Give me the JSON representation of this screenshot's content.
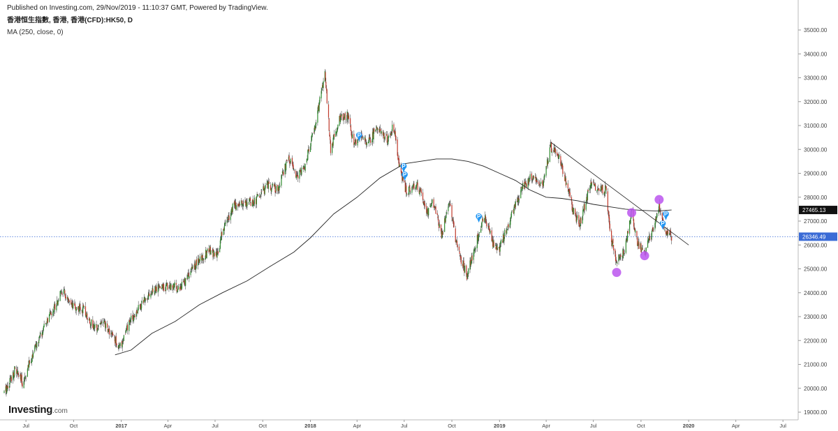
{
  "header": {
    "published": "Published on Investing.com, 29/Nov/2019 - 11:10:37 GMT, Powered by TradingView.",
    "symbol": "香港恒生指數, 香港, 香港(CFD):HK50, D",
    "indicator": "MA (250, close, 0)"
  },
  "logo": {
    "brand": "Investing",
    "domain": ".com"
  },
  "chart_data": {
    "type": "candlestick",
    "title": "",
    "xlabel": "",
    "ylabel": "",
    "ylim": [
      19000,
      35000
    ],
    "xlim": [
      "2016-05-20",
      "2020-07-25"
    ],
    "y_ticks": [
      19000,
      20000,
      21000,
      22000,
      23000,
      24000,
      25000,
      26000,
      27000,
      28000,
      29000,
      30000,
      31000,
      32000,
      33000,
      34000,
      35000
    ],
    "y_tick_labels": [
      "19000.00",
      "20000.00",
      "21000.00",
      "22000.00",
      "23000.00",
      "24000.00",
      "25000.00",
      "26000.00",
      "27000.00",
      "28000.00",
      "29000.00",
      "30000.00",
      "31000.00",
      "32000.00",
      "33000.00",
      "34000.00",
      "35000.00"
    ],
    "x_ticks": [
      {
        "label": "Jul",
        "date": "2016-07-01",
        "bold": false
      },
      {
        "label": "Oct",
        "date": "2016-10-01",
        "bold": false
      },
      {
        "label": "2017",
        "date": "2017-01-01",
        "bold": true
      },
      {
        "label": "Apr",
        "date": "2017-04-01",
        "bold": false
      },
      {
        "label": "Jul",
        "date": "2017-07-01",
        "bold": false
      },
      {
        "label": "Oct",
        "date": "2017-10-01",
        "bold": false
      },
      {
        "label": "2018",
        "date": "2018-01-01",
        "bold": true
      },
      {
        "label": "Apr",
        "date": "2018-04-01",
        "bold": false
      },
      {
        "label": "Jul",
        "date": "2018-07-01",
        "bold": false
      },
      {
        "label": "Oct",
        "date": "2018-10-01",
        "bold": false
      },
      {
        "label": "2019",
        "date": "2019-01-01",
        "bold": true
      },
      {
        "label": "Apr",
        "date": "2019-04-01",
        "bold": false
      },
      {
        "label": "Jul",
        "date": "2019-07-01",
        "bold": false
      },
      {
        "label": "Oct",
        "date": "2019-10-01",
        "bold": false
      },
      {
        "label": "2020",
        "date": "2020-01-01",
        "bold": true
      },
      {
        "label": "Apr",
        "date": "2020-04-01",
        "bold": false
      },
      {
        "label": "Jul",
        "date": "2020-07-01",
        "bold": false
      }
    ],
    "price_path": [
      [
        "2016-05-20",
        19800
      ],
      [
        "2016-06-10",
        20800
      ],
      [
        "2016-06-25",
        20200
      ],
      [
        "2016-07-15",
        21500
      ],
      [
        "2016-08-15",
        23000
      ],
      [
        "2016-09-10",
        24100
      ],
      [
        "2016-09-25",
        23400
      ],
      [
        "2016-10-20",
        23300
      ],
      [
        "2016-11-10",
        22500
      ],
      [
        "2016-11-25",
        22800
      ],
      [
        "2016-12-15",
        22200
      ],
      [
        "2016-12-29",
        21700
      ],
      [
        "2017-01-20",
        22900
      ],
      [
        "2017-02-20",
        23900
      ],
      [
        "2017-03-15",
        24200
      ],
      [
        "2017-04-05",
        24300
      ],
      [
        "2017-04-25",
        24200
      ],
      [
        "2017-05-25",
        25200
      ],
      [
        "2017-06-20",
        25800
      ],
      [
        "2017-07-05",
        25500
      ],
      [
        "2017-07-15",
        26600
      ],
      [
        "2017-08-05",
        27600
      ],
      [
        "2017-08-25",
        27800
      ],
      [
        "2017-09-15",
        27800
      ],
      [
        "2017-10-10",
        28500
      ],
      [
        "2017-10-30",
        28300
      ],
      [
        "2017-11-20",
        29700
      ],
      [
        "2017-12-05",
        28800
      ],
      [
        "2017-12-20",
        29200
      ],
      [
        "2018-01-10",
        31000
      ],
      [
        "2018-01-29",
        33200
      ],
      [
        "2018-02-09",
        30000
      ],
      [
        "2018-02-25",
        31200
      ],
      [
        "2018-03-15",
        31500
      ],
      [
        "2018-03-25",
        30200
      ],
      [
        "2018-04-10",
        30500
      ],
      [
        "2018-04-25",
        30300
      ],
      [
        "2018-05-10",
        31000
      ],
      [
        "2018-05-30",
        30400
      ],
      [
        "2018-06-10",
        31000
      ],
      [
        "2018-06-22",
        29300
      ],
      [
        "2018-07-05",
        28200
      ],
      [
        "2018-07-25",
        28600
      ],
      [
        "2018-08-15",
        27400
      ],
      [
        "2018-08-25",
        27800
      ],
      [
        "2018-09-12",
        26400
      ],
      [
        "2018-09-25",
        27900
      ],
      [
        "2018-10-11",
        25900
      ],
      [
        "2018-10-30",
        24700
      ],
      [
        "2018-11-15",
        26000
      ],
      [
        "2018-12-03",
        27200
      ],
      [
        "2018-12-20",
        26000
      ],
      [
        "2018-12-31",
        25800
      ],
      [
        "2019-01-20",
        27000
      ],
      [
        "2019-02-15",
        28400
      ],
      [
        "2019-03-05",
        28900
      ],
      [
        "2019-03-25",
        28500
      ],
      [
        "2019-04-10",
        30100
      ],
      [
        "2019-04-25",
        29800
      ],
      [
        "2019-05-10",
        28500
      ],
      [
        "2019-05-25",
        27300
      ],
      [
        "2019-06-05",
        26900
      ],
      [
        "2019-06-25",
        28500
      ],
      [
        "2019-07-10",
        28400
      ],
      [
        "2019-07-25",
        28300
      ],
      [
        "2019-08-05",
        26200
      ],
      [
        "2019-08-15",
        25300
      ],
      [
        "2019-08-30",
        25800
      ],
      [
        "2019-09-13",
        27300
      ],
      [
        "2019-09-25",
        26000
      ],
      [
        "2019-10-08",
        25700
      ],
      [
        "2019-10-25",
        26700
      ],
      [
        "2019-11-06",
        27600
      ],
      [
        "2019-11-15",
        26700
      ],
      [
        "2019-11-29",
        26346
      ]
    ],
    "series": [
      {
        "name": "MA (250, close, 0)",
        "type": "line",
        "points": [
          [
            "2016-12-20",
            21400
          ],
          [
            "2017-01-20",
            21600
          ],
          [
            "2017-03-01",
            22300
          ],
          [
            "2017-04-15",
            22800
          ],
          [
            "2017-06-01",
            23500
          ],
          [
            "2017-07-15",
            24000
          ],
          [
            "2017-09-01",
            24500
          ],
          [
            "2017-10-15",
            25100
          ],
          [
            "2017-11-30",
            25700
          ],
          [
            "2018-01-01",
            26300
          ],
          [
            "2018-02-15",
            27300
          ],
          [
            "2018-04-01",
            28000
          ],
          [
            "2018-05-15",
            28800
          ],
          [
            "2018-07-01",
            29400
          ],
          [
            "2018-09-01",
            29600
          ],
          [
            "2018-10-01",
            29600
          ],
          [
            "2018-11-01",
            29500
          ],
          [
            "2018-12-01",
            29300
          ],
          [
            "2019-01-01",
            29000
          ],
          [
            "2019-02-01",
            28700
          ],
          [
            "2019-03-01",
            28300
          ],
          [
            "2019-04-01",
            28000
          ],
          [
            "2019-05-01",
            27950
          ],
          [
            "2019-06-01",
            27850
          ],
          [
            "2019-07-01",
            27700
          ],
          [
            "2019-08-01",
            27600
          ],
          [
            "2019-09-01",
            27500
          ],
          [
            "2019-10-01",
            27450
          ],
          [
            "2019-11-01",
            27420
          ],
          [
            "2019-11-29",
            27465
          ]
        ]
      },
      {
        "name": "",
        "type": "trendline",
        "points": [
          [
            "2019-04-10",
            30300
          ],
          [
            "2020-01-01",
            26000
          ]
        ]
      }
    ],
    "price_labels": [
      {
        "value": 27465.13,
        "label": "27465.13",
        "color": "#111111"
      },
      {
        "value": 26346.49,
        "label": "26346.49",
        "color": "#3a6bd6"
      }
    ],
    "current_price_line": 26346.49,
    "markers": [
      {
        "kind": "flag",
        "date": "2018-04-05",
        "value": 30600,
        "color": "#2196f3",
        "label": "P"
      },
      {
        "kind": "flag",
        "date": "2018-06-30",
        "value": 29300,
        "color": "#2196f3",
        "label": "P"
      },
      {
        "kind": "flag",
        "date": "2018-07-02",
        "value": 28950,
        "color": "#2196f3",
        "label": "P"
      },
      {
        "kind": "flag",
        "date": "2018-11-22",
        "value": 27200,
        "color": "#2196f3",
        "label": "P"
      },
      {
        "kind": "flag",
        "date": "2019-11-12",
        "value": 26900,
        "color": "#2196f3",
        "label": "P"
      },
      {
        "kind": "flag",
        "date": "2019-11-18",
        "value": 27300,
        "color": "#2196f3",
        "label": "P"
      },
      {
        "kind": "dot",
        "date": "2019-08-15",
        "value": 24850,
        "color": "#bb55ee"
      },
      {
        "kind": "dot",
        "date": "2019-09-13",
        "value": 27350,
        "color": "#bb55ee"
      },
      {
        "kind": "dot",
        "date": "2019-10-08",
        "value": 25550,
        "color": "#bb55ee"
      },
      {
        "kind": "dot",
        "date": "2019-11-05",
        "value": 27900,
        "color": "#bb55ee"
      }
    ],
    "grid": false,
    "legend": "top-left",
    "colors": {
      "up": "#2e8b2e",
      "down": "#c0392b",
      "ma": "#222222",
      "axis": "#bbbbbb"
    }
  }
}
